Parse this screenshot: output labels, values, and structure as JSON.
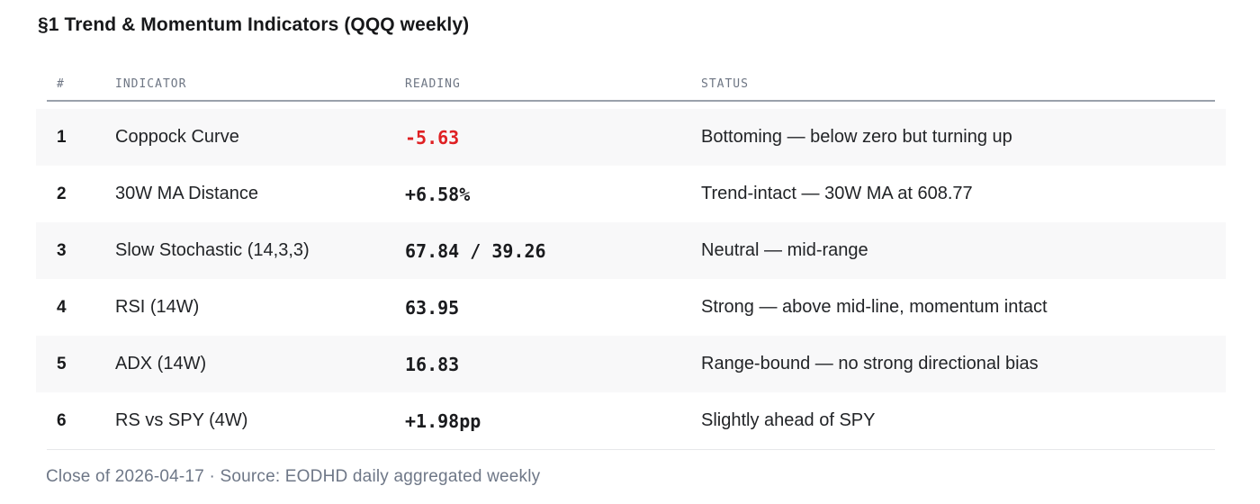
{
  "title": "§1 Trend & Momentum Indicators (QQQ weekly)",
  "table": {
    "columns": [
      "#",
      "INDICATOR",
      "READING",
      "STATUS"
    ],
    "rows": [
      {
        "num": "1",
        "indicator": "Coppock Curve",
        "reading": "-5.63",
        "negative": true,
        "status": "Bottoming — below zero but turning up"
      },
      {
        "num": "2",
        "indicator": "30W MA Distance",
        "reading": "+6.58%",
        "negative": false,
        "status": "Trend-intact — 30W MA at 608.77"
      },
      {
        "num": "3",
        "indicator": "Slow Stochastic (14,3,3)",
        "reading": "67.84 / 39.26",
        "negative": false,
        "status": "Neutral — mid-range"
      },
      {
        "num": "4",
        "indicator": "RSI (14W)",
        "reading": "63.95",
        "negative": false,
        "status": "Strong — above mid-line, momentum intact"
      },
      {
        "num": "5",
        "indicator": "ADX (14W)",
        "reading": "16.83",
        "negative": false,
        "status": "Range-bound — no strong directional bias"
      },
      {
        "num": "6",
        "indicator": "RS vs SPY (4W)",
        "reading": "+1.98pp",
        "negative": false,
        "status": "Slightly ahead of SPY"
      }
    ]
  },
  "footer": "Close of 2026-04-17 · Source: EODHD daily aggregated weekly",
  "colors": {
    "negative_reading": "#df2023",
    "reading_default": "#1a1b1e",
    "shaded_row_bg": "#f8f8f9",
    "header_rule": "#9aa1ac"
  }
}
